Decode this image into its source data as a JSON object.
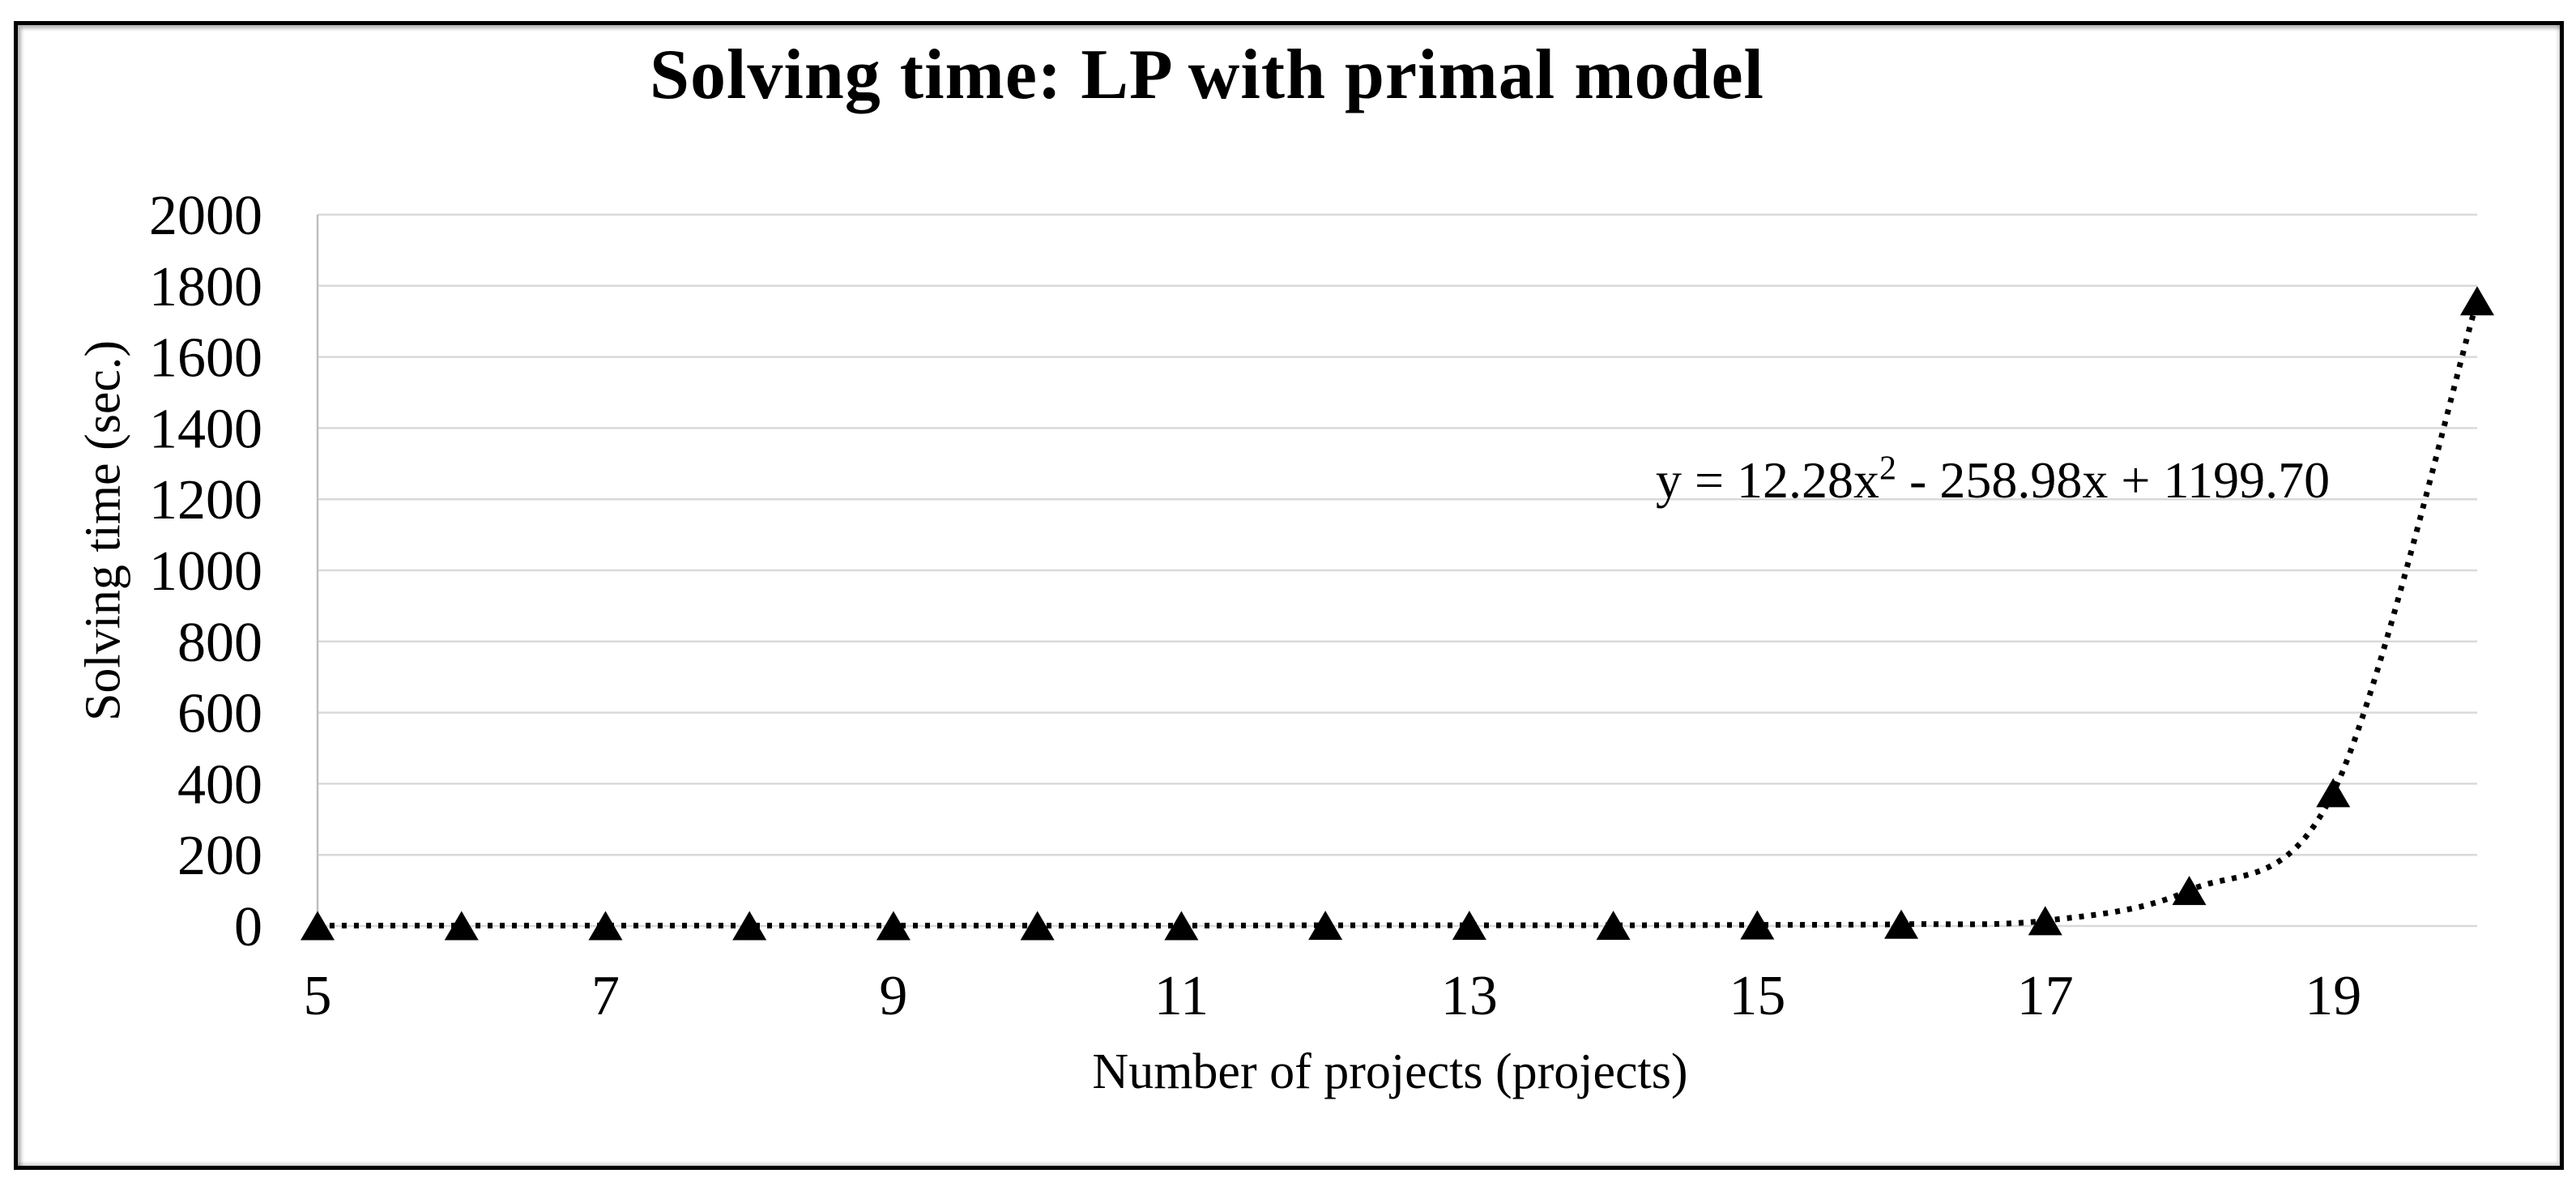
{
  "chart": {
    "title": "Solving time: LP with primal model",
    "y_axis_title": "Solving time (sec.)",
    "x_axis_title": "Number of projects (projects)",
    "equation": {
      "prefix": "y = 12.28x",
      "sup": "2",
      "suffix": " - 258.98x + 1199.70"
    }
  },
  "chart_data": {
    "type": "scatter",
    "title": "Solving time: LP with primal model",
    "xlabel": "Number of projects (projects)",
    "ylabel": "Solving time (sec.)",
    "x": [
      5,
      6,
      7,
      8,
      9,
      10,
      11,
      12,
      13,
      14,
      15,
      16,
      17,
      18,
      19,
      20
    ],
    "y": [
      1,
      1,
      1,
      1,
      1,
      1,
      1,
      2,
      2,
      2,
      3,
      5,
      15,
      100,
      375,
      1758
    ],
    "xlim": [
      5,
      20
    ],
    "ylim": [
      0,
      2000
    ],
    "y_tick_step": 200,
    "y_tick_labels": [
      "0",
      "200",
      "400",
      "600",
      "800",
      "1000",
      "1200",
      "1400",
      "1600",
      "1800",
      "2000"
    ],
    "x_tick_labels": [
      "5",
      "7",
      "9",
      "11",
      "13",
      "15",
      "17",
      "19"
    ],
    "grid": "horizontal",
    "legend": "none",
    "line_style": "dotted",
    "marker": "filled-triangle",
    "series_color": "#000000",
    "grid_color": "#d9d9d9",
    "axis_line_color": "#bfbfbf",
    "trendline_equation": "y = 12.28x² - 258.98x + 1199.70"
  }
}
